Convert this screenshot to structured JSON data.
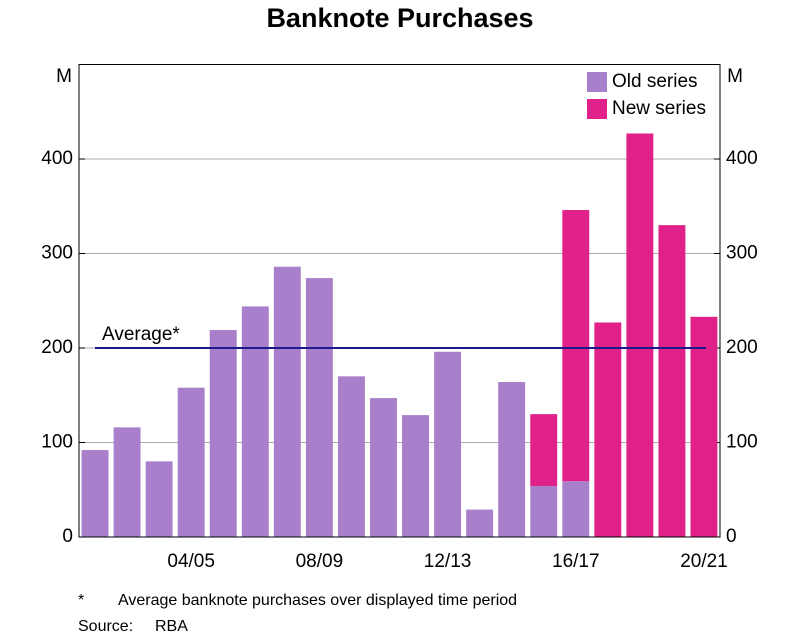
{
  "chart_data": {
    "type": "bar",
    "stacked": true,
    "title": "Banknote Purchases",
    "y_unit": "M",
    "y2_unit": "M",
    "categories": [
      null,
      null,
      null,
      "04/05",
      null,
      null,
      null,
      "08/09",
      null,
      null,
      null,
      "12/13",
      null,
      null,
      null,
      "16/17",
      null,
      null,
      null,
      "20/21"
    ],
    "series": [
      {
        "name": "Old series",
        "color": "#a77fcb",
        "values": [
          92,
          116,
          80,
          158,
          219,
          244,
          286,
          274,
          170,
          147,
          129,
          196,
          29,
          164,
          54,
          59,
          null,
          null,
          null,
          null
        ]
      },
      {
        "name": "New series",
        "color": "#e0218a",
        "values": [
          null,
          null,
          null,
          null,
          null,
          null,
          null,
          null,
          null,
          null,
          null,
          null,
          null,
          null,
          76,
          287,
          227,
          427,
          330,
          233
        ]
      }
    ],
    "ylim": [
      0,
      500
    ],
    "yticks": [
      0,
      100,
      200,
      300,
      400
    ],
    "y2lim": [
      0,
      500
    ],
    "y2ticks": [
      0,
      100,
      200,
      300,
      400
    ],
    "grid": true,
    "legend": "top-right",
    "average": {
      "value": 200,
      "label": "Average*",
      "color": "#1a1a8c"
    },
    "note_marker": "*",
    "note": "Average banknote purchases over displayed time period",
    "source_label": "Source:",
    "source": "RBA"
  }
}
